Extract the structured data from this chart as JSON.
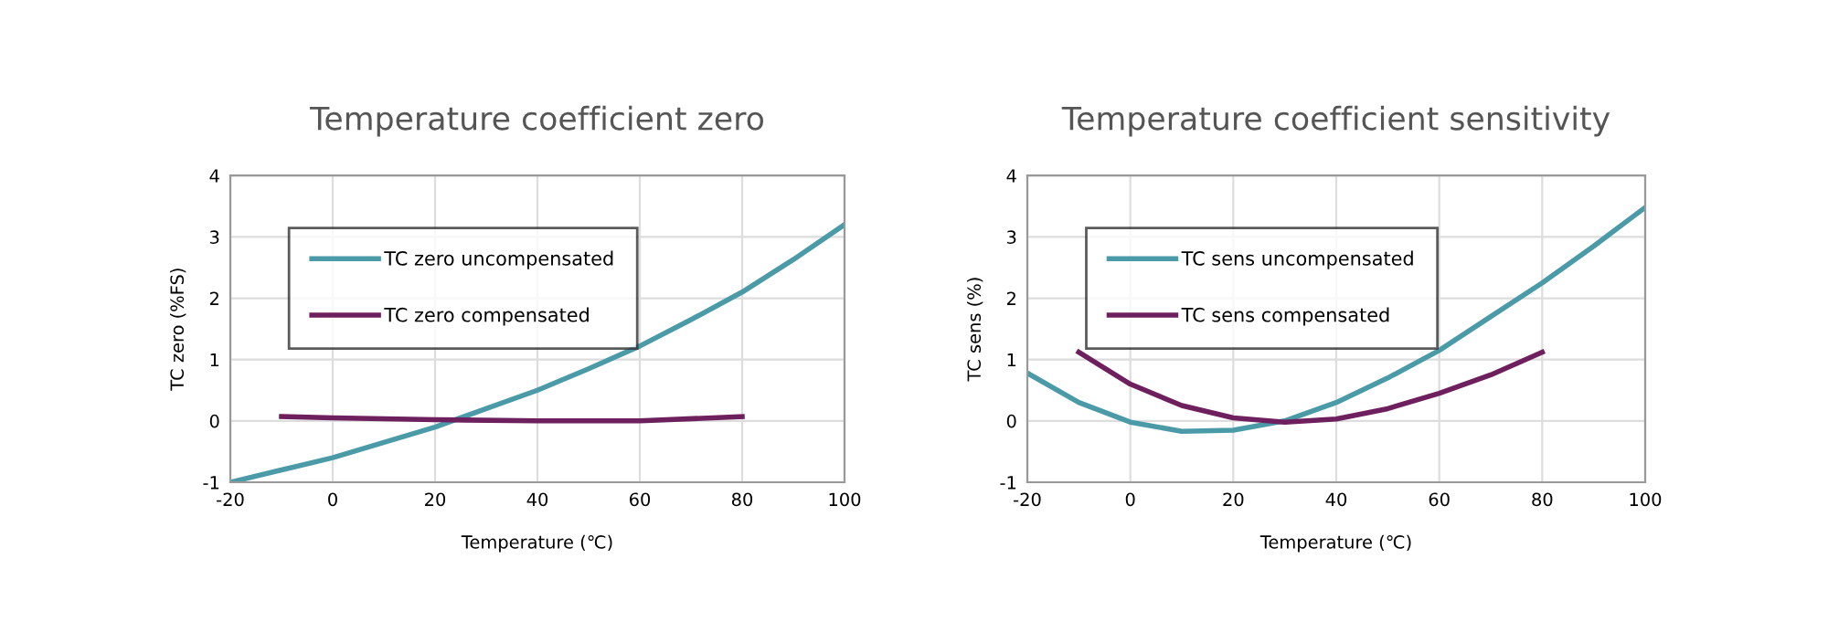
{
  "chart_data": [
    {
      "type": "line",
      "title": "Temperature coefficient zero",
      "xlabel": "Temperature (℃)",
      "ylabel": "TC zero (%FS)",
      "xlim": [
        -20,
        100
      ],
      "xticks": [
        -20,
        0,
        20,
        40,
        60,
        80,
        100
      ],
      "ylim": [
        -1,
        4
      ],
      "yticks": [
        -1,
        0,
        1,
        2,
        3,
        4
      ],
      "grid": true,
      "legend": "top left",
      "series": [
        {
          "name": "TC zero uncompensated",
          "color": "#4a9aa8",
          "x": [
            -20,
            -10,
            0,
            10,
            20,
            30,
            40,
            50,
            60,
            70,
            80,
            90,
            100
          ],
          "values": [
            -1,
            -0.8,
            -0.6,
            -0.35,
            -0.1,
            0.2,
            0.5,
            0.85,
            1.22,
            1.65,
            2.1,
            2.63,
            3.2
          ]
        },
        {
          "name": "TC zero compensated",
          "color": "#6e1f5e",
          "x": [
            -10,
            0,
            20,
            40,
            60,
            80
          ],
          "values": [
            0.07,
            0.05,
            0.02,
            0,
            0,
            0.07
          ]
        }
      ]
    },
    {
      "type": "line",
      "title": "Temperature coefficient sensitivity",
      "xlabel": "Temperature (℃)",
      "ylabel": "TC sens (%)",
      "xlim": [
        -20,
        100
      ],
      "xticks": [
        -20,
        0,
        20,
        40,
        60,
        80,
        100
      ],
      "ylim": [
        -1,
        4
      ],
      "yticks": [
        -1,
        0,
        1,
        2,
        3,
        4
      ],
      "grid": true,
      "legend": "top left",
      "series": [
        {
          "name": "TC sens uncompensated",
          "color": "#4a9aa8",
          "x": [
            -20,
            -10,
            0,
            10,
            20,
            30,
            40,
            50,
            60,
            70,
            80,
            90,
            100
          ],
          "values": [
            0.78,
            0.3,
            -0.02,
            -0.17,
            -0.15,
            0.0,
            0.3,
            0.7,
            1.15,
            1.7,
            2.25,
            2.85,
            3.48
          ]
        },
        {
          "name": "TC sens compensated",
          "color": "#6e1f5e",
          "x": [
            -10,
            0,
            10,
            20,
            30,
            40,
            50,
            60,
            70,
            80
          ],
          "values": [
            1.12,
            0.6,
            0.25,
            0.05,
            -0.02,
            0.03,
            0.2,
            0.45,
            0.75,
            1.12
          ]
        }
      ]
    }
  ]
}
